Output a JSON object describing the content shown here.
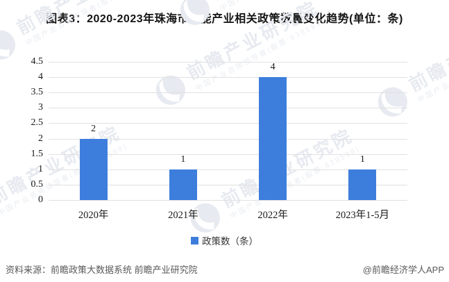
{
  "chart_data": {
    "type": "bar",
    "title": "图表3：2020-2023年珠海市氢能产业相关政策数量变化趋势(单位：条)",
    "categories": [
      "2020年",
      "2021年",
      "2022年",
      "2023年1-5月"
    ],
    "values": [
      2,
      1,
      4,
      1
    ],
    "series_name": "政策数（条）",
    "xlabel": "",
    "ylabel": "",
    "ylim": [
      0,
      4.5
    ],
    "yticks": [
      0,
      0.5,
      1,
      1.5,
      2,
      2.5,
      3,
      3.5,
      4,
      4.5
    ],
    "grid": "on",
    "legend_position": "bottom-center",
    "bar_color": "#3d7edc",
    "grid_color": "#e1e1e1",
    "value_labels_shown": true
  },
  "legend": {
    "label": "政策数（条）",
    "marker_color": "#3d7edc"
  },
  "footer": {
    "source": "资料来源：前瞻政策大数据系统 前瞻产业研究院",
    "credit": "@前瞻经济学人APP"
  },
  "watermark": {
    "brand": "前瞻产业研究院",
    "tagline": "中国产业咨询领导者(股票:839599)"
  }
}
